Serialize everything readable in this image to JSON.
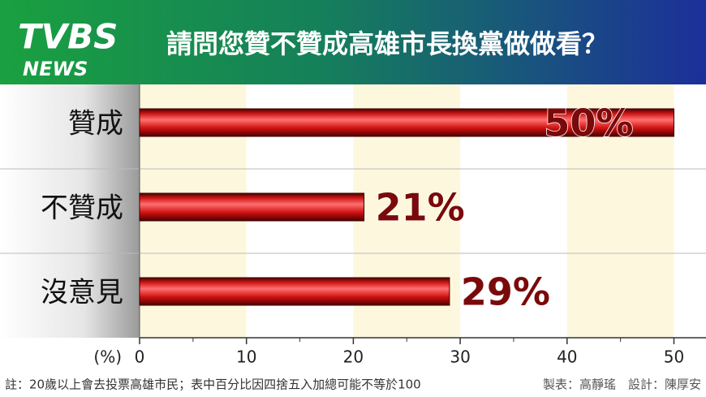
{
  "header": {
    "logo": "TVBS",
    "logo_sub": "NEWS"
  },
  "chart_data": {
    "type": "hbar",
    "title": "請問您贊不贊成高雄市長換黨做做看？",
    "categories": [
      "贊成",
      "不贊成",
      "沒意見"
    ],
    "values": [
      50,
      21,
      29
    ],
    "value_labels": [
      "50%",
      "21%",
      "29%"
    ],
    "x_label": "(%)",
    "xlim": [
      0,
      53
    ],
    "xticks": [
      0,
      10,
      20,
      30,
      40,
      50
    ],
    "xticks_minor": [
      5,
      15,
      25,
      35,
      45
    ],
    "grid": true,
    "color": "#d01818",
    "label_color": "#7a0a0a",
    "note": "註：20歲以上會去投票高雄市民；表中百分比因四捨五入加總可能不等於100",
    "credits": "製表：高靜瑤　設計：陳厚安"
  }
}
